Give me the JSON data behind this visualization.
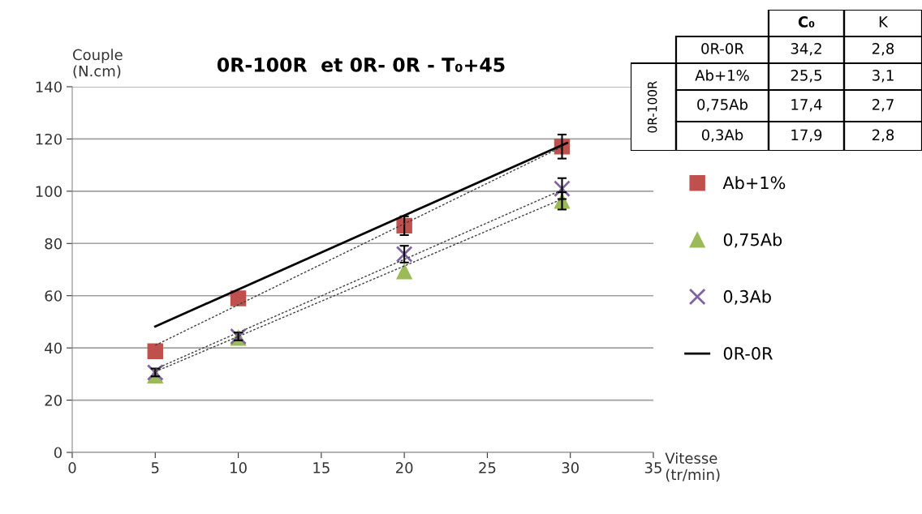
{
  "chart_data": [
    {
      "type": "scatter",
      "title": "0R-100R  et 0R- 0R - T₀+45",
      "xlabel": "Vitesse\n(tr/min)",
      "ylabel": "Couple\n(N.cm)",
      "xlim": [
        0,
        35
      ],
      "xticks": [
        0,
        5,
        10,
        15,
        20,
        25,
        30,
        35
      ],
      "ylim": [
        0,
        140
      ],
      "yticks": [
        0,
        20,
        40,
        60,
        80,
        100,
        120,
        140
      ],
      "grid": "y",
      "legend": "right",
      "series": [
        {
          "name": "Ab+1%",
          "type": "scatter",
          "marker": "square",
          "color": "#c0504d",
          "x": [
            5,
            10,
            20,
            29.5
          ],
          "values": [
            38.7,
            59,
            86.8,
            117.1
          ],
          "errors": [
            null,
            null,
            3.6,
            4.6
          ]
        },
        {
          "name": "0,75Ab",
          "type": "scatter",
          "marker": "triangle",
          "color": "#9bbb59",
          "x": [
            5,
            10,
            20,
            29.5
          ],
          "values": [
            29.4,
            43.8,
            69.3,
            96.3
          ],
          "errors": [
            null,
            null,
            null,
            3.3
          ]
        },
        {
          "name": "0,3Ab",
          "type": "scatter",
          "marker": "cross",
          "color": "#8064a2",
          "x": [
            5,
            10,
            20,
            29.5
          ],
          "values": [
            30.6,
            44.4,
            75.9,
            101
          ],
          "errors": [
            1.5,
            1.5,
            3.2,
            4
          ]
        },
        {
          "name": "0R-0R",
          "type": "line",
          "line_style": "solid",
          "color": "#000000",
          "x": [
            5,
            29.8
          ],
          "values": [
            48.2,
            118.5
          ]
        },
        {
          "type": "line",
          "line_style": "dotted",
          "color": "#404040",
          "x": [
            5,
            29.5
          ],
          "values": [
            41,
            117
          ]
        },
        {
          "type": "line",
          "line_style": "dotted",
          "color": "#404040",
          "x": [
            5,
            29.5
          ],
          "values": [
            30.9,
            97
          ]
        },
        {
          "type": "line",
          "line_style": "dotted",
          "color": "#404040",
          "x": [
            5,
            29.5
          ],
          "values": [
            31.9,
            100.5
          ]
        }
      ]
    },
    {
      "type": "other",
      "categories": [
        "C₀",
        "K"
      ],
      "y_categories": [
        "0R-0R",
        "Ab+1%",
        "0,75Ab",
        "0,3Ab"
      ],
      "cell_labels": [
        [
          "34,2",
          "2,8"
        ],
        [
          "25,5",
          "3,1"
        ],
        [
          "17,4",
          "2,7"
        ],
        [
          "17,9",
          "2,8"
        ]
      ],
      "annotations": [
        "0R-100R"
      ]
    }
  ]
}
